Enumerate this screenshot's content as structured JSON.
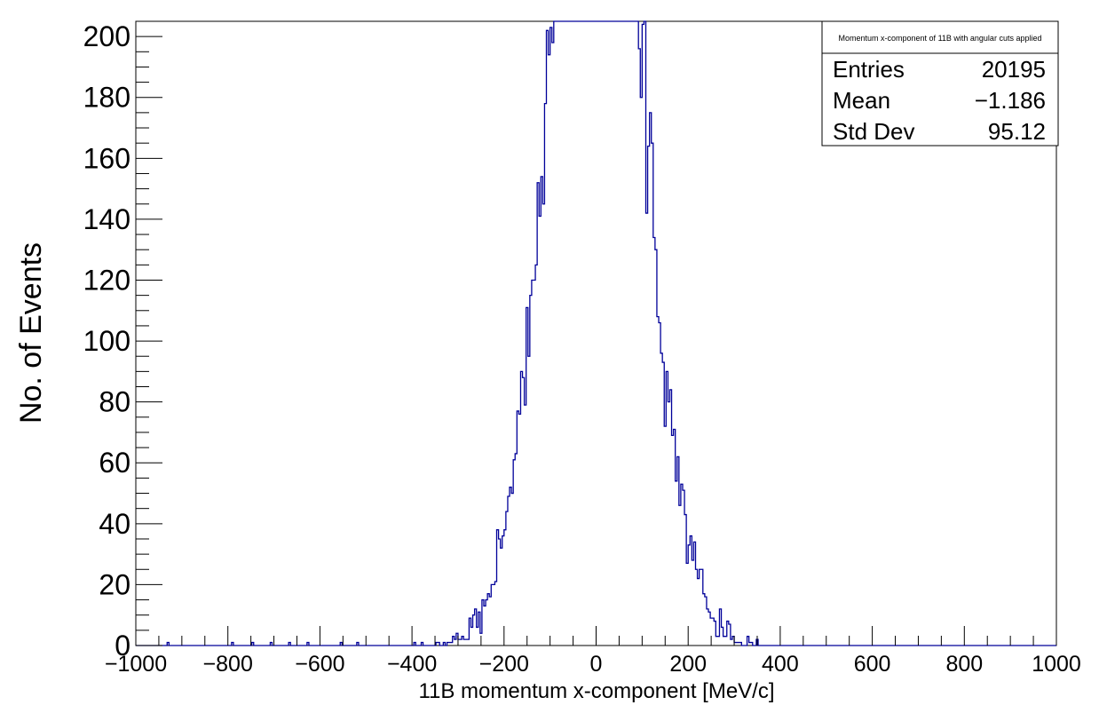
{
  "chart_data": {
    "type": "histogram",
    "title": "Momentum x-component of 11B with angular cuts applied",
    "xlabel": "11B momentum x-component [MeV/c]",
    "ylabel": "No. of Events",
    "xlim": [
      -1000,
      1000
    ],
    "ylim": [
      0,
      205
    ],
    "x_ticks": [
      -1000,
      -800,
      -600,
      -400,
      -200,
      0,
      200,
      400,
      600,
      800,
      1000
    ],
    "x_tick_labels": [
      "−1000",
      "−800",
      "−600",
      "−400",
      "−200",
      "0",
      "200",
      "400",
      "600",
      "800",
      "1000"
    ],
    "y_ticks": [
      0,
      20,
      40,
      60,
      80,
      100,
      120,
      140,
      160,
      180,
      200
    ],
    "y_tick_labels": [
      "0",
      "20",
      "40",
      "60",
      "80",
      "100",
      "120",
      "140",
      "160",
      "180",
      "200"
    ],
    "bin_width": 4,
    "line_color": "#000099",
    "stats": {
      "rows": [
        {
          "label": "Entries",
          "value": "20195"
        },
        {
          "label": "Mean",
          "value": "−1.186"
        },
        {
          "label": "Std Dev",
          "value": "95.12"
        }
      ]
    }
  }
}
